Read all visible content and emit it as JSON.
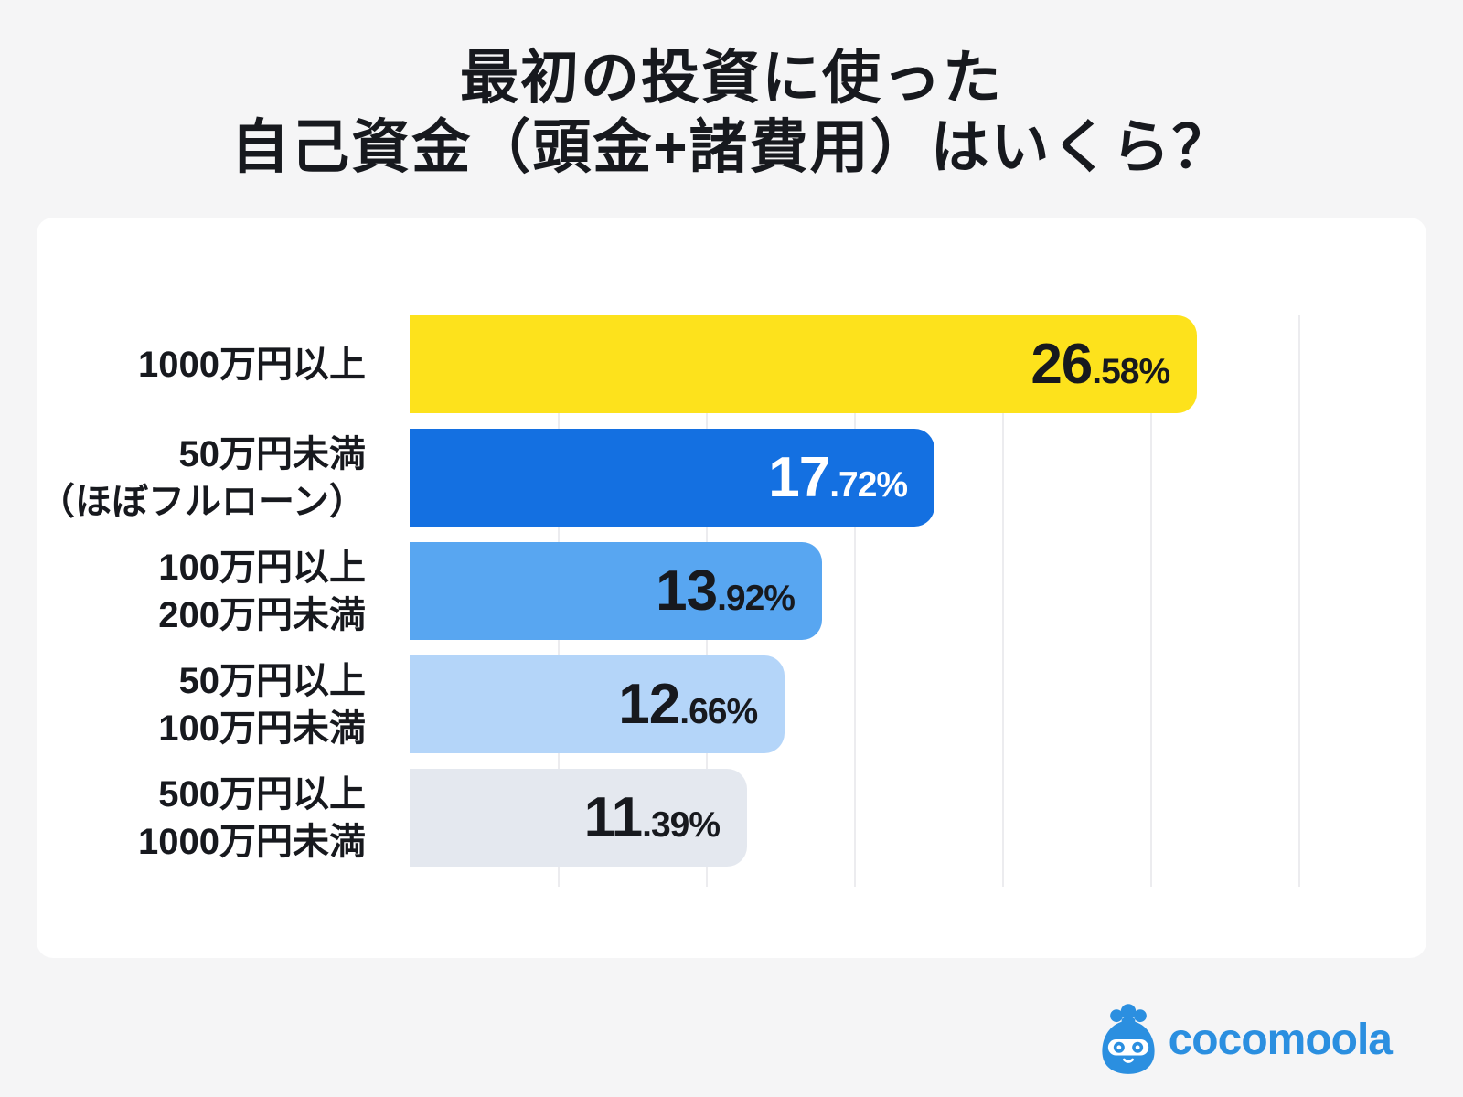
{
  "page": {
    "background": "#F5F5F6",
    "card_background": "#FFFFFF",
    "text_color": "#17191E"
  },
  "title": {
    "line1": "最初の投資に使った",
    "line2": "自己資金（頭金+諸費用）はいくら？"
  },
  "chart_data": {
    "type": "bar",
    "orientation": "horizontal",
    "title": "最初の投資に使った自己資金（頭金+諸費用）はいくら？",
    "xlabel": "",
    "ylabel": "",
    "unit": "%",
    "xlim": [
      0,
      33.5
    ],
    "grid": true,
    "gridlines_percent": [
      5,
      10,
      15,
      20,
      25,
      30
    ],
    "grid_color": "#ECECEF",
    "categories": [
      "1000万円以上",
      "50万円未満（ほぼフルローン）",
      "100万円以上200万円未満",
      "50万円以上100万円未満",
      "500万円以上1000万円未満"
    ],
    "values": [
      26.58,
      17.72,
      13.92,
      12.66,
      11.39
    ],
    "series": [
      {
        "label_lines": [
          "1000万円以上"
        ],
        "value": 26.58,
        "value_display": {
          "int": "26",
          "frac": ".58",
          "suffix": "%"
        },
        "bar_color": "#FDE21C",
        "value_color": "#17191E"
      },
      {
        "label_lines": [
          "50万円未満",
          "（ほぼフルローン）"
        ],
        "value": 17.72,
        "value_display": {
          "int": "17",
          "frac": ".72",
          "suffix": "%"
        },
        "bar_color": "#1470E1",
        "value_color": "#FFFFFF"
      },
      {
        "label_lines": [
          "100万円以上",
          "200万円未満"
        ],
        "value": 13.92,
        "value_display": {
          "int": "13",
          "frac": ".92",
          "suffix": "%"
        },
        "bar_color": "#58A6F1",
        "value_color": "#17191E"
      },
      {
        "label_lines": [
          "50万円以上",
          "100万円未満"
        ],
        "value": 12.66,
        "value_display": {
          "int": "12",
          "frac": ".66",
          "suffix": "%"
        },
        "bar_color": "#B4D5F9",
        "value_color": "#17191E"
      },
      {
        "label_lines": [
          "500万円以上",
          "1000万円未満"
        ],
        "value": 11.39,
        "value_display": {
          "int": "11",
          "frac": ".39",
          "suffix": "%"
        },
        "bar_color": "#E4E8EF",
        "value_color": "#17191E"
      }
    ]
  },
  "logo": {
    "text": "cocomoola",
    "color": "#2B8FE0",
    "icon": "money-bag-mascot"
  }
}
